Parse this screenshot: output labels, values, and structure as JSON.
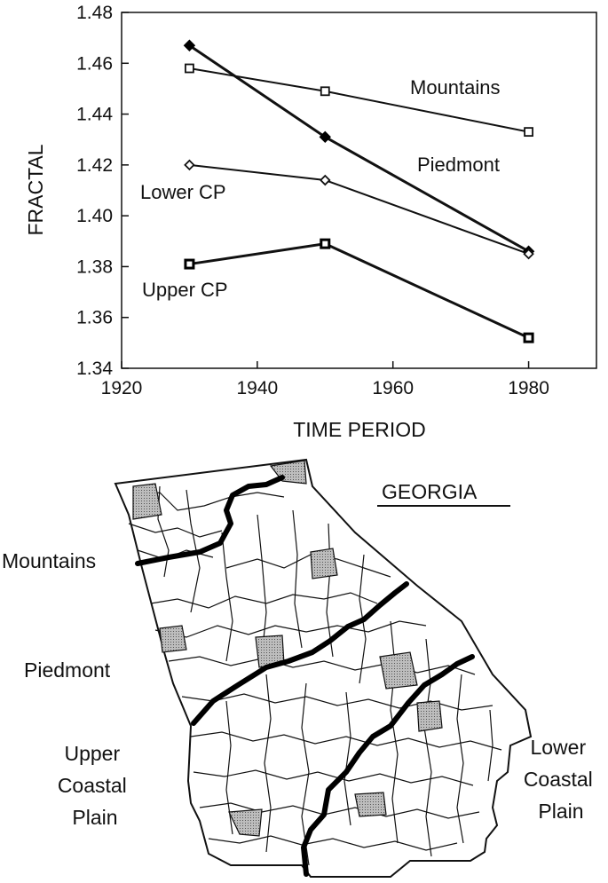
{
  "chart_data": {
    "type": "line",
    "xlabel": "TIME PERIOD",
    "ylabel": "FRACTAL",
    "xlim": [
      1920,
      1990
    ],
    "ylim": [
      1.34,
      1.48
    ],
    "xticks": [
      "1920",
      "1940",
      "1960",
      "1980"
    ],
    "yticks": [
      "1.34",
      "1.36",
      "1.38",
      "1.40",
      "1.42",
      "1.44",
      "1.46",
      "1.48"
    ],
    "grid": false,
    "series": [
      {
        "name": "Mountains",
        "marker": "open-square",
        "x": [
          1930,
          1950,
          1980
        ],
        "y": [
          1.458,
          1.449,
          1.433
        ]
      },
      {
        "name": "Piedmont",
        "marker": "filled-diamond",
        "x": [
          1930,
          1950,
          1980
        ],
        "y": [
          1.467,
          1.431,
          1.386
        ]
      },
      {
        "name": "Lower CP",
        "marker": "open-diamond",
        "x": [
          1930,
          1950,
          1980
        ],
        "y": [
          1.42,
          1.414,
          1.385
        ]
      },
      {
        "name": "Upper CP",
        "marker": "bold-square",
        "x": [
          1930,
          1950,
          1980
        ],
        "y": [
          1.381,
          1.389,
          1.352
        ]
      }
    ]
  },
  "map": {
    "title": "GEORGIA",
    "regions": {
      "mountains": "Mountains",
      "piedmont": "Piedmont",
      "upper_cp": [
        "Upper",
        "Coastal",
        "Plain"
      ],
      "lower_cp": [
        "Lower",
        "Coastal",
        "Plain"
      ]
    },
    "shading_color": "#9a9a9a"
  }
}
